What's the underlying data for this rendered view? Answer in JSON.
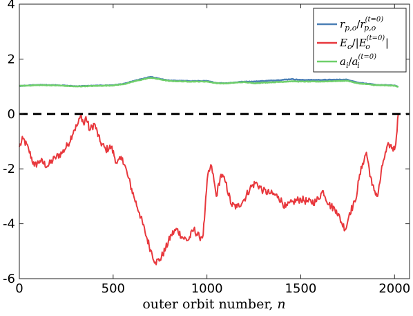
{
  "chart_data": {
    "type": "line",
    "title": "",
    "xlabel": "outer orbit number,",
    "xlabel_var": "n",
    "ylabel": "",
    "xlim": [
      0,
      2080
    ],
    "ylim": [
      -6,
      4
    ],
    "x_ticks": [
      0,
      500,
      1000,
      1500,
      2000
    ],
    "y_ticks": [
      -6,
      -4,
      -2,
      0,
      2,
      4
    ],
    "grid": false,
    "legend_position": "top-right",
    "reference_line": {
      "y": 0,
      "style": "dashed",
      "color": "#000000"
    },
    "series": [
      {
        "name": "r_p,o / r_p,o^(t=0)",
        "color": "#4a7fb5",
        "x": [
          0,
          100,
          200,
          300,
          400,
          500,
          560,
          620,
          700,
          750,
          800,
          900,
          1000,
          1050,
          1100,
          1150,
          1200,
          1250,
          1300,
          1400,
          1450,
          1500,
          1600,
          1700,
          1750,
          1800,
          1900,
          2000,
          2020
        ],
        "y": [
          1.02,
          1.06,
          1.05,
          1.01,
          1.03,
          1.05,
          1.1,
          1.22,
          1.35,
          1.28,
          1.22,
          1.2,
          1.2,
          1.13,
          1.12,
          1.15,
          1.18,
          1.18,
          1.2,
          1.24,
          1.27,
          1.24,
          1.24,
          1.25,
          1.25,
          1.15,
          1.06,
          1.04,
          0.99
        ]
      },
      {
        "name": "E_o / |E_o^(t=0)|",
        "color": "#e8383d",
        "x": [
          0,
          20,
          50,
          80,
          110,
          150,
          190,
          230,
          260,
          290,
          310,
          330,
          345,
          355,
          375,
          400,
          430,
          460,
          490,
          520,
          550,
          580,
          610,
          640,
          670,
          700,
          725,
          750,
          780,
          810,
          840,
          870,
          900,
          930,
          960,
          980,
          990,
          1005,
          1025,
          1050,
          1075,
          1100,
          1130,
          1160,
          1200,
          1230,
          1260,
          1300,
          1340,
          1380,
          1420,
          1460,
          1500,
          1540,
          1580,
          1620,
          1650,
          1690,
          1720,
          1740,
          1760,
          1790,
          1810,
          1830,
          1850,
          1880,
          1910,
          1940,
          1970,
          2000,
          2010,
          2020
        ],
        "y": [
          -1.2,
          -0.9,
          -1.3,
          -1.9,
          -1.7,
          -1.9,
          -1.6,
          -1.4,
          -1.1,
          -0.6,
          -0.4,
          -0.05,
          -0.4,
          -0.1,
          -0.6,
          -0.35,
          -1.0,
          -1.3,
          -1.2,
          -1.8,
          -1.6,
          -2.3,
          -3.0,
          -3.6,
          -4.3,
          -4.95,
          -5.4,
          -5.3,
          -4.9,
          -4.4,
          -4.2,
          -4.5,
          -4.6,
          -4.2,
          -4.5,
          -4.4,
          -3.5,
          -2.2,
          -1.9,
          -3.0,
          -2.2,
          -2.5,
          -3.3,
          -3.4,
          -3.1,
          -2.7,
          -2.5,
          -2.8,
          -2.9,
          -3.0,
          -3.4,
          -3.2,
          -3.1,
          -3.2,
          -3.2,
          -2.8,
          -3.3,
          -3.5,
          -4.0,
          -4.2,
          -3.6,
          -3.2,
          -2.4,
          -1.8,
          -1.4,
          -2.6,
          -3.0,
          -1.7,
          -1.1,
          -1.3,
          -0.8,
          0.0
        ]
      },
      {
        "name": "a_i / a_i^(t=0)",
        "color": "#6fcf6a",
        "x": [
          0,
          100,
          200,
          300,
          400,
          500,
          560,
          620,
          700,
          750,
          800,
          900,
          1000,
          1050,
          1100,
          1150,
          1200,
          1250,
          1300,
          1400,
          1450,
          1500,
          1600,
          1700,
          1750,
          1800,
          1900,
          2000,
          2020
        ],
        "y": [
          1.02,
          1.05,
          1.04,
          1.0,
          1.02,
          1.04,
          1.09,
          1.2,
          1.32,
          1.26,
          1.2,
          1.18,
          1.18,
          1.12,
          1.11,
          1.14,
          1.16,
          1.12,
          1.14,
          1.17,
          1.19,
          1.18,
          1.18,
          1.2,
          1.21,
          1.12,
          1.05,
          1.03,
          0.98
        ]
      }
    ]
  },
  "legend": {
    "entries": [
      {
        "num_base": "r",
        "num_sub": "p,o",
        "den_base": "r",
        "den_sub": "p,o",
        "den_sup": "(t=0)"
      },
      {
        "num_base": "E",
        "num_sub": "o",
        "den_base": "E",
        "den_sub": "o",
        "den_sup": "(t=0)"
      },
      {
        "num_base": "a",
        "num_sub": "i",
        "den_base": "a",
        "den_sub": "i",
        "den_sup": "(t=0)"
      }
    ]
  }
}
